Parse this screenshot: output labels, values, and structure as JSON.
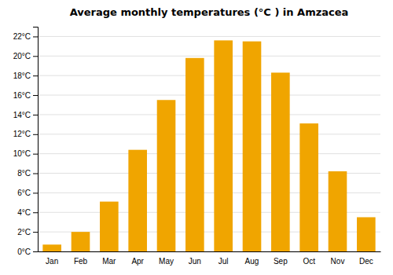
{
  "chart_data": {
    "type": "bar",
    "title": "Average monthly temperatures (°C ) in Amzacea",
    "categories": [
      "Jan",
      "Feb",
      "Mar",
      "Apr",
      "May",
      "Jun",
      "Jul",
      "Aug",
      "Sep",
      "Oct",
      "Nov",
      "Dec"
    ],
    "values": [
      0.7,
      2.0,
      5.1,
      10.4,
      15.5,
      19.8,
      21.6,
      21.5,
      18.3,
      13.1,
      8.2,
      3.5
    ],
    "color": "#F0A500",
    "ylim": [
      0,
      23
    ],
    "yticks": [
      {
        "value": 0,
        "label": "0°C"
      },
      {
        "value": 2,
        "label": "2°C"
      },
      {
        "value": 4,
        "label": "4°C"
      },
      {
        "value": 6,
        "label": "6°C"
      },
      {
        "value": 8,
        "label": "8°C"
      },
      {
        "value": 10,
        "label": "10°C"
      },
      {
        "value": 12,
        "label": "12°C"
      },
      {
        "value": 14,
        "label": "14°C"
      },
      {
        "value": 16,
        "label": "16°C"
      },
      {
        "value": 18,
        "label": "18°C"
      },
      {
        "value": 20,
        "label": "20°C"
      },
      {
        "value": 22,
        "label": "22°C"
      }
    ],
    "grid": true
  }
}
